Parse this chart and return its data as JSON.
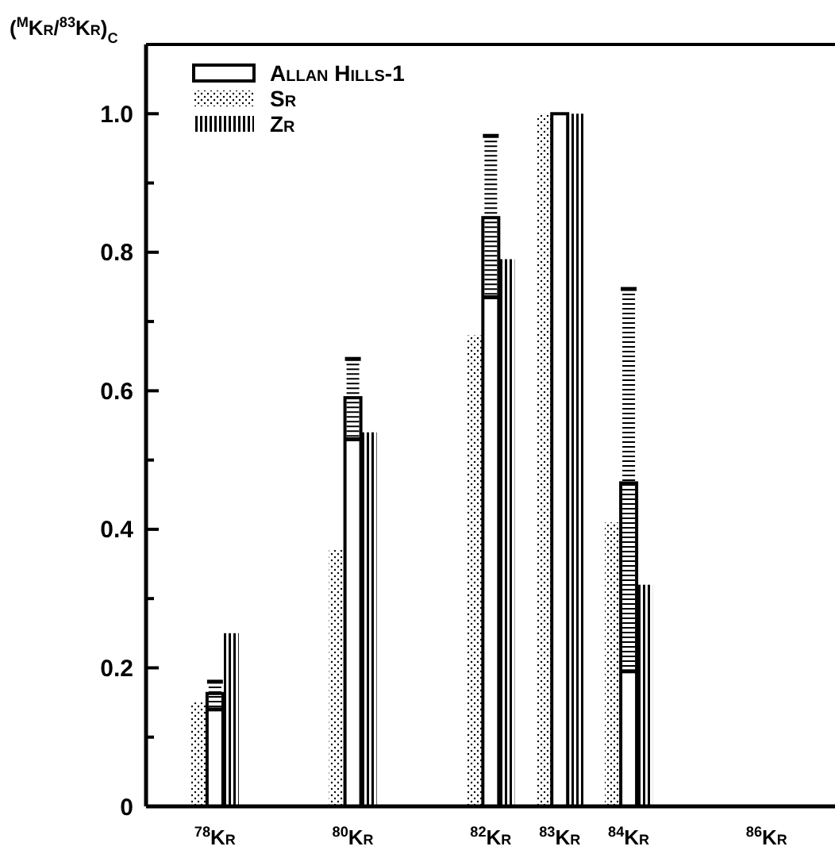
{
  "chart_data": {
    "type": "bar",
    "ylabel": "($^{M}$Kr/$^{83}$Kr)$_{C}$",
    "x": [
      78,
      80,
      82,
      83,
      84,
      86
    ],
    "xlim": [
      77.0,
      86.9
    ],
    "xticks": [
      {
        "value": 78,
        "label": "$^{78}$Kr"
      },
      {
        "value": 80,
        "label": "$^{80}$Kr"
      },
      {
        "value": 82,
        "label": "$^{82}$Kr"
      },
      {
        "value": 83,
        "label": "$^{83}$Kr"
      },
      {
        "value": 84,
        "label": "$^{84}$Kr"
      },
      {
        "value": 86,
        "label": "$^{86}$Kr"
      }
    ],
    "ylim": [
      0,
      1.1
    ],
    "yticks": [
      0,
      {
        "value": 0.1,
        "label": null
      },
      0.2,
      {
        "value": 0.3,
        "label": null
      },
      0.4,
      {
        "value": 0.5,
        "label": null
      },
      0.6,
      {
        "value": 0.7,
        "label": null
      },
      0.8,
      {
        "value": 0.9,
        "label": null
      },
      {
        "value": 1.0,
        "label": "1.0"
      }
    ],
    "series": [
      {
        "name": "Sr",
        "color": "#000000",
        "values": [
          0.15,
          0.37,
          0.68,
          1.0,
          0.41,
          null
        ]
      },
      {
        "name": "Allan Hills-1",
        "color": "#000000",
        "values": [
          0.163,
          0.59,
          0.85,
          1.0,
          0.467,
          0
        ],
        "errors": [
          [
            0.14,
            0.18
          ],
          [
            0.53,
            0.646
          ],
          [
            0.735,
            0.968
          ],
          null,
          [
            0.195,
            0.747
          ],
          null
        ]
      },
      {
        "name": "Zr",
        "color": "#000000",
        "values": [
          0.25,
          0.54,
          0.79,
          1.0,
          0.32,
          null
        ]
      }
    ],
    "legend": "top left"
  }
}
